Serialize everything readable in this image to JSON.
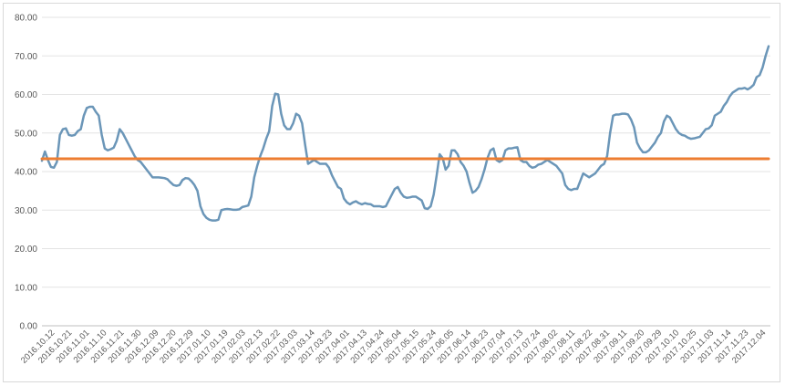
{
  "chart_data": {
    "type": "line",
    "title": "",
    "xlabel": "",
    "ylabel": "",
    "ylim": [
      0,
      80
    ],
    "y_ticks": [
      "0.00",
      "10.00",
      "20.00",
      "30.00",
      "40.00",
      "50.00",
      "60.00",
      "70.00",
      "80.00"
    ],
    "grid": "horizontal",
    "legend": "none",
    "x_tick_labels": [
      "2016.10.12",
      "2016.10.21",
      "2016.11.01",
      "2016.11.10",
      "2016.11.21",
      "2016.11.30",
      "2016.12.09",
      "2016.12.20",
      "2016.12.29",
      "2017.01.10",
      "2017.01.19",
      "2017.02.03",
      "2017.02.13",
      "2017.02.22",
      "2017.03.03",
      "2017.03.14",
      "2017.03.23",
      "2017.04.01",
      "2017.04.13",
      "2017.04.24",
      "2017.05.04",
      "2017.05.15",
      "2017.05.24",
      "2017.06.05",
      "2017.06.14",
      "2017.06.23",
      "2017.07.04",
      "2017.07.13",
      "2017.07.24",
      "2017.08.02",
      "2017.08.11",
      "2017.08.22",
      "2017.08.31",
      "2017.09.11",
      "2017.09.20",
      "2017.09.29",
      "2017.10.10",
      "2017.10.25",
      "2017.11.03",
      "2017.11.14",
      "2017.11.23",
      "2017.12.04"
    ],
    "series": [
      {
        "name": "",
        "color": "#6b96b8",
        "values": [
          42.8,
          45.2,
          43.0,
          41.2,
          41.0,
          42.5,
          49.5,
          51.0,
          51.2,
          49.5,
          49.3,
          49.5,
          50.5,
          51.0,
          54.5,
          56.5,
          56.8,
          56.8,
          55.5,
          54.5,
          49.5,
          46.0,
          45.5,
          45.8,
          46.2,
          48.0,
          51.0,
          50.0,
          48.5,
          47.0,
          45.5,
          44.0,
          43.0,
          42.5,
          41.5,
          40.5,
          39.5,
          38.5,
          38.5,
          38.5,
          38.4,
          38.3,
          38.0,
          37.2,
          36.5,
          36.3,
          36.5,
          37.8,
          38.3,
          38.2,
          37.5,
          36.5,
          35.0,
          31.0,
          29.0,
          28.0,
          27.5,
          27.3,
          27.3,
          27.5,
          30.0,
          30.2,
          30.3,
          30.2,
          30.1,
          30.1,
          30.2,
          30.8,
          31.0,
          31.2,
          33.5,
          38.5,
          41.5,
          44.0,
          46.0,
          48.5,
          50.5,
          57.0,
          60.2,
          60.0,
          55.0,
          52.0,
          51.0,
          51.0,
          52.5,
          55.0,
          54.5,
          52.5,
          47.0,
          42.0,
          42.5,
          43.0,
          42.5,
          42.0,
          42.0,
          42.0,
          41.0,
          39.0,
          37.5,
          36.0,
          35.5,
          33.0,
          32.0,
          31.5,
          32.0,
          32.3,
          31.8,
          31.5,
          31.8,
          31.6,
          31.5,
          31.0,
          31.0,
          31.0,
          30.8,
          31.0,
          32.5,
          34.0,
          35.5,
          36.0,
          34.5,
          33.5,
          33.2,
          33.3,
          33.5,
          33.5,
          33.0,
          32.5,
          30.5,
          30.3,
          31.0,
          34.0,
          39.0,
          44.5,
          43.5,
          40.5,
          41.5,
          45.5,
          45.5,
          44.5,
          42.5,
          41.5,
          40.0,
          37.0,
          34.5,
          35.0,
          36.0,
          38.0,
          40.5,
          43.5,
          45.5,
          46.0,
          43.0,
          42.5,
          43.0,
          45.5,
          46.0,
          46.0,
          46.2,
          46.3,
          43.0,
          42.5,
          42.5,
          41.5,
          41.0,
          41.2,
          41.8,
          42.0,
          42.5,
          43.0,
          42.5,
          42.0,
          41.5,
          40.5,
          39.5,
          36.5,
          35.5,
          35.2,
          35.5,
          35.5,
          37.5,
          39.5,
          39.0,
          38.5,
          39.0,
          39.5,
          40.5,
          41.5,
          42.0,
          44.0,
          50.0,
          54.5,
          54.8,
          54.8,
          55.0,
          55.0,
          54.8,
          53.5,
          51.5,
          47.5,
          46.0,
          45.0,
          45.0,
          45.5,
          46.5,
          47.5,
          49.0,
          50.0,
          53.0,
          54.5,
          54.0,
          52.5,
          51.0,
          50.0,
          49.5,
          49.3,
          48.8,
          48.5,
          48.6,
          48.8,
          49.0,
          50.0,
          51.0,
          51.2,
          52.0,
          54.5,
          55.0,
          55.5,
          57.0,
          58.0,
          59.5,
          60.5,
          61.0,
          61.5,
          61.5,
          61.7,
          61.3,
          61.8,
          62.5,
          64.5,
          65.0,
          67.0,
          70.0,
          72.5
        ]
      },
      {
        "name": "",
        "color": "#ed7d31",
        "values": [
          43.3,
          43.3
        ]
      }
    ]
  }
}
